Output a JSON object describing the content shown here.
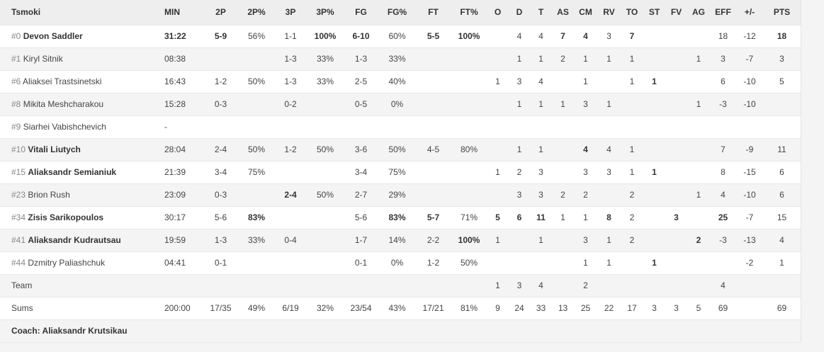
{
  "team": "Tsmoki",
  "headers": [
    "MIN",
    "2P",
    "2P%",
    "3P",
    "3P%",
    "FG",
    "FG%",
    "FT",
    "FT%",
    "O",
    "D",
    "T",
    "AS",
    "CM",
    "RV",
    "TO",
    "ST",
    "FV",
    "AG",
    "EFF",
    "+/-",
    "PTS"
  ],
  "rows": [
    {
      "num": "#0",
      "name": "Devon Saddler",
      "bold": true,
      "stats": [
        "31:22",
        "5-9",
        "56%",
        "1-1",
        "100%",
        "6-10",
        "60%",
        "5-5",
        "100%",
        "",
        "4",
        "4",
        "7",
        "4",
        "3",
        "7",
        "",
        "",
        "",
        "18",
        "-12",
        "18"
      ],
      "boldIdx": [
        0,
        1,
        4,
        5,
        7,
        8,
        12,
        13,
        15,
        21
      ]
    },
    {
      "num": "#1",
      "name": "Kiryl Sitnik",
      "bold": false,
      "stats": [
        "08:38",
        "",
        "",
        "1-3",
        "33%",
        "1-3",
        "33%",
        "",
        "",
        "",
        "1",
        "1",
        "2",
        "1",
        "1",
        "1",
        "",
        "",
        "1",
        "3",
        "-7",
        "3"
      ],
      "boldIdx": []
    },
    {
      "num": "#6",
      "name": "Aliaksei Trastsinetski",
      "bold": false,
      "stats": [
        "16:43",
        "1-2",
        "50%",
        "1-3",
        "33%",
        "2-5",
        "40%",
        "",
        "",
        "1",
        "3",
        "4",
        "",
        "1",
        "",
        "1",
        "1",
        "",
        "",
        "6",
        "-10",
        "5"
      ],
      "boldIdx": [
        16
      ]
    },
    {
      "num": "#8",
      "name": "Mikita Meshcharakou",
      "bold": false,
      "stats": [
        "15:28",
        "0-3",
        "",
        "0-2",
        "",
        "0-5",
        "0%",
        "",
        "",
        "",
        "1",
        "1",
        "1",
        "3",
        "1",
        "",
        "",
        "",
        "1",
        "-3",
        "-10",
        ""
      ],
      "boldIdx": []
    },
    {
      "num": "#9",
      "name": "Siarhei Vabishchevich",
      "bold": false,
      "stats": [
        "-",
        "",
        "",
        "",
        "",
        "",
        "",
        "",
        "",
        "",
        "",
        "",
        "",
        "",
        "",
        "",
        "",
        "",
        "",
        "",
        "",
        ""
      ],
      "boldIdx": []
    },
    {
      "num": "#10",
      "name": "Vitali Liutych",
      "bold": true,
      "stats": [
        "28:04",
        "2-4",
        "50%",
        "1-2",
        "50%",
        "3-6",
        "50%",
        "4-5",
        "80%",
        "",
        "1",
        "1",
        "",
        "4",
        "4",
        "1",
        "",
        "",
        "",
        "7",
        "-9",
        "11"
      ],
      "boldIdx": [
        13
      ]
    },
    {
      "num": "#15",
      "name": "Aliaksandr Semianiuk",
      "bold": true,
      "stats": [
        "21:39",
        "3-4",
        "75%",
        "",
        "",
        "3-4",
        "75%",
        "",
        "",
        "1",
        "2",
        "3",
        "",
        "3",
        "3",
        "1",
        "1",
        "",
        "",
        "8",
        "-15",
        "6"
      ],
      "boldIdx": [
        16
      ]
    },
    {
      "num": "#23",
      "name": "Brion Rush",
      "bold": false,
      "stats": [
        "23:09",
        "0-3",
        "",
        "2-4",
        "50%",
        "2-7",
        "29%",
        "",
        "",
        "",
        "3",
        "3",
        "2",
        "2",
        "",
        "2",
        "",
        "",
        "1",
        "4",
        "-10",
        "6"
      ],
      "boldIdx": [
        3
      ]
    },
    {
      "num": "#34",
      "name": "Zisis Sarikopoulos",
      "bold": true,
      "stats": [
        "30:17",
        "5-6",
        "83%",
        "",
        "",
        "5-6",
        "83%",
        "5-7",
        "71%",
        "5",
        "6",
        "11",
        "1",
        "1",
        "8",
        "2",
        "",
        "3",
        "",
        "25",
        "-7",
        "15"
      ],
      "boldIdx": [
        2,
        6,
        7,
        9,
        10,
        11,
        14,
        17,
        19
      ]
    },
    {
      "num": "#41",
      "name": "Aliaksandr Kudrautsau",
      "bold": true,
      "stats": [
        "19:59",
        "1-3",
        "33%",
        "0-4",
        "",
        "1-7",
        "14%",
        "2-2",
        "100%",
        "1",
        "",
        "1",
        "",
        "3",
        "1",
        "2",
        "",
        "",
        "2",
        "-3",
        "-13",
        "4"
      ],
      "boldIdx": [
        8,
        18
      ]
    },
    {
      "num": "#44",
      "name": "Dzmitry Paliashchuk",
      "bold": false,
      "stats": [
        "04:41",
        "0-1",
        "",
        "",
        "",
        "0-1",
        "0%",
        "1-2",
        "50%",
        "",
        "",
        "",
        "",
        "1",
        "1",
        "",
        "1",
        "",
        "",
        "",
        "-2",
        "1"
      ],
      "boldIdx": [
        16
      ]
    },
    {
      "num": "",
      "name": "Team",
      "bold": false,
      "stats": [
        "",
        "",
        "",
        "",
        "",
        "",
        "",
        "",
        "",
        "1",
        "3",
        "4",
        "",
        "2",
        "",
        "",
        "",
        "",
        "",
        "4",
        "",
        ""
      ],
      "boldIdx": []
    },
    {
      "num": "",
      "name": "Sums",
      "bold": false,
      "stats": [
        "200:00",
        "17/35",
        "49%",
        "6/19",
        "32%",
        "23/54",
        "43%",
        "17/21",
        "81%",
        "9",
        "24",
        "33",
        "13",
        "25",
        "22",
        "17",
        "3",
        "3",
        "5",
        "69",
        "",
        "69"
      ],
      "boldIdx": []
    }
  ],
  "coach": "Coach: Aliaksandr Krutsikau"
}
